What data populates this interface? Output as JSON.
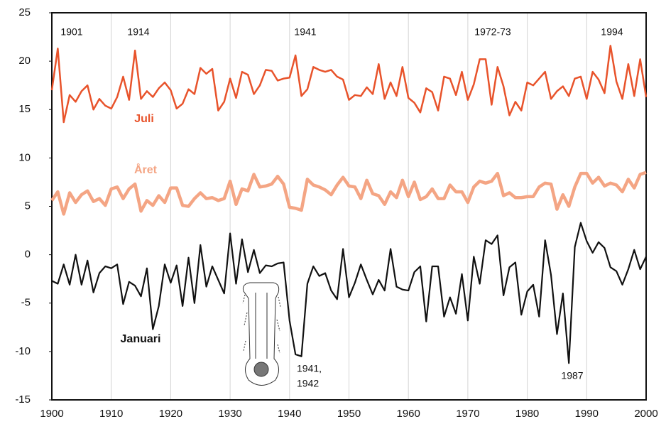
{
  "chart_data": {
    "type": "line",
    "x": [
      1900,
      1901,
      1902,
      1903,
      1904,
      1905,
      1906,
      1907,
      1908,
      1909,
      1910,
      1911,
      1912,
      1913,
      1914,
      1915,
      1916,
      1917,
      1918,
      1919,
      1920,
      1921,
      1922,
      1923,
      1924,
      1925,
      1926,
      1927,
      1928,
      1929,
      1930,
      1931,
      1932,
      1933,
      1934,
      1935,
      1936,
      1937,
      1938,
      1939,
      1940,
      1941,
      1942,
      1943,
      1944,
      1945,
      1946,
      1947,
      1948,
      1949,
      1950,
      1951,
      1952,
      1953,
      1954,
      1955,
      1956,
      1957,
      1958,
      1959,
      1960,
      1961,
      1962,
      1963,
      1964,
      1965,
      1966,
      1967,
      1968,
      1969,
      1970,
      1971,
      1972,
      1973,
      1974,
      1975,
      1976,
      1977,
      1978,
      1979,
      1980,
      1981,
      1982,
      1983,
      1984,
      1985,
      1986,
      1987,
      1988,
      1989,
      1990,
      1991,
      1992,
      1993,
      1994,
      1995,
      1996,
      1997,
      1998,
      1999,
      2000
    ],
    "series": [
      {
        "name": "Juli",
        "color": "#e8532b",
        "width": 2.5,
        "values": [
          17.0,
          21.3,
          13.7,
          16.5,
          15.8,
          16.9,
          17.5,
          15.0,
          16.1,
          15.4,
          15.1,
          16.3,
          18.4,
          16.0,
          21.1,
          16.1,
          16.9,
          16.3,
          17.2,
          17.8,
          17.0,
          15.1,
          15.6,
          17.1,
          16.6,
          19.3,
          18.7,
          19.2,
          14.9,
          15.8,
          18.2,
          16.2,
          18.9,
          18.6,
          16.6,
          17.5,
          19.1,
          19.0,
          18.0,
          18.2,
          18.3,
          20.6,
          16.4,
          17.1,
          19.4,
          19.1,
          18.9,
          19.1,
          18.4,
          18.1,
          16.0,
          16.5,
          16.4,
          17.3,
          16.6,
          19.7,
          16.1,
          17.8,
          16.4,
          19.4,
          16.2,
          15.7,
          14.7,
          17.2,
          16.8,
          14.9,
          18.4,
          18.2,
          16.5,
          18.9,
          16.0,
          17.6,
          20.2,
          20.2,
          15.5,
          19.4,
          17.4,
          14.4,
          15.8,
          14.9,
          17.8,
          17.5,
          18.2,
          18.9,
          16.1,
          16.9,
          17.4,
          16.4,
          18.2,
          18.4,
          16.1,
          18.9,
          18.1,
          16.7,
          21.6,
          17.9,
          16.1,
          19.7,
          16.4,
          20.2,
          16.3
        ]
      },
      {
        "name": "Året",
        "color": "#f4a584",
        "width": 4.5,
        "values": [
          5.6,
          6.5,
          4.2,
          6.4,
          5.4,
          6.2,
          6.6,
          5.5,
          5.8,
          5.1,
          6.8,
          7.0,
          5.8,
          6.8,
          7.3,
          4.5,
          5.6,
          5.1,
          6.1,
          5.4,
          6.9,
          6.9,
          5.1,
          5.0,
          5.8,
          6.4,
          5.8,
          5.9,
          5.6,
          5.8,
          7.6,
          5.2,
          6.8,
          6.6,
          8.3,
          7.0,
          7.1,
          7.3,
          8.1,
          7.3,
          4.9,
          4.8,
          4.6,
          7.8,
          7.2,
          7.0,
          6.7,
          6.2,
          7.2,
          8.0,
          7.1,
          7.0,
          5.8,
          7.7,
          6.3,
          6.1,
          5.2,
          6.5,
          5.9,
          7.7,
          6.0,
          7.5,
          5.7,
          6.0,
          6.8,
          5.8,
          5.8,
          7.2,
          6.5,
          6.5,
          5.4,
          7.0,
          7.6,
          7.4,
          7.6,
          8.4,
          6.1,
          6.4,
          5.9,
          5.9,
          6.0,
          6.0,
          7.0,
          7.4,
          7.3,
          4.7,
          6.2,
          5.0,
          7.0,
          8.4,
          8.4,
          7.4,
          8.0,
          7.1,
          7.4,
          7.2,
          6.5,
          7.8,
          6.9,
          8.3,
          8.5
        ]
      },
      {
        "name": "Januari",
        "color": "#111111",
        "width": 2.2,
        "values": [
          -2.7,
          -3.0,
          -1.0,
          -3.1,
          0.0,
          -3.1,
          -0.6,
          -3.9,
          -1.9,
          -1.2,
          -1.4,
          -1.0,
          -5.1,
          -2.8,
          -3.2,
          -4.3,
          -1.4,
          -7.7,
          -5.3,
          -1.0,
          -2.9,
          -1.1,
          -5.3,
          -0.3,
          -5.0,
          1.0,
          -3.3,
          -1.2,
          -2.6,
          -4.0,
          2.2,
          -3.0,
          1.6,
          -1.8,
          0.5,
          -1.9,
          -1.1,
          -1.2,
          -0.9,
          -0.8,
          -6.8,
          -10.3,
          -10.5,
          -3.0,
          -1.2,
          -2.2,
          -1.9,
          -3.7,
          -4.6,
          0.6,
          -4.4,
          -2.9,
          -1.0,
          -2.6,
          -4.1,
          -2.6,
          -3.7,
          0.6,
          -3.3,
          -3.6,
          -3.7,
          -1.8,
          -1.2,
          -6.9,
          -1.2,
          -1.2,
          -6.4,
          -4.4,
          -6.1,
          -2.0,
          -6.8,
          -0.2,
          -3.0,
          1.5,
          1.1,
          2.0,
          -4.2,
          -1.3,
          -0.8,
          -6.2,
          -3.8,
          -3.1,
          -6.4,
          1.5,
          -2.1,
          -8.2,
          -4.0,
          -11.2,
          0.8,
          3.3,
          1.4,
          0.2,
          1.3,
          0.7,
          -1.3,
          -1.7,
          -3.1,
          -1.5,
          0.5,
          -1.5,
          -0.2
        ]
      }
    ],
    "annotations": [
      "1901",
      "1914",
      "1941",
      "1972-73",
      "1994",
      "1941,",
      "1942",
      "1987"
    ],
    "xlim": [
      1900,
      2000
    ],
    "xticks": [
      1900,
      1910,
      1920,
      1930,
      1940,
      1950,
      1960,
      1970,
      1980,
      1990,
      2000
    ],
    "ylim": [
      -15,
      25
    ],
    "yticks": [
      -15,
      -10,
      -5,
      0,
      5,
      10,
      15,
      20,
      25
    ],
    "grid": "x"
  }
}
